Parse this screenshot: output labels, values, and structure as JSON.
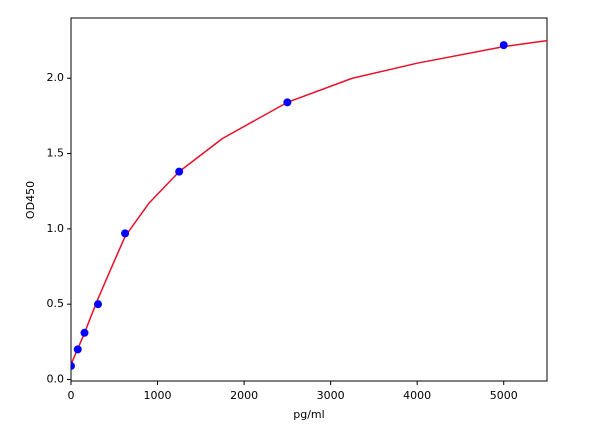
{
  "chart_data": {
    "type": "scatter",
    "xlabel": "pg/ml",
    "ylabel": "OD450",
    "xlim": [
      0,
      5500
    ],
    "ylim": [
      -0.01,
      2.4
    ],
    "xticks": [
      0,
      1000,
      2000,
      3000,
      4000,
      5000
    ],
    "yticks": [
      {
        "value": 0,
        "label": "0.0"
      },
      {
        "value": 0.5,
        "label": "0.5"
      },
      {
        "value": 1,
        "label": "1.0"
      },
      {
        "value": 1.5,
        "label": "1.5"
      },
      {
        "value": 2,
        "label": "2.0"
      }
    ],
    "series": [
      {
        "style": "points",
        "color": "#0000ff",
        "x": [
          0,
          78,
          156,
          312,
          625,
          1250,
          2500,
          5000
        ],
        "values": [
          0.09,
          0.2,
          0.31,
          0.5,
          0.97,
          1.38,
          1.84,
          2.22
        ]
      },
      {
        "style": "line",
        "color": "#e8102a",
        "x": [
          0,
          150,
          300,
          450,
          625,
          900,
          1250,
          1750,
          2500,
          3250,
          4000,
          5000,
          5500
        ],
        "values": [
          0.1,
          0.3,
          0.52,
          0.72,
          0.95,
          1.17,
          1.38,
          1.6,
          1.84,
          2.0,
          2.1,
          2.21,
          2.25
        ]
      }
    ]
  }
}
